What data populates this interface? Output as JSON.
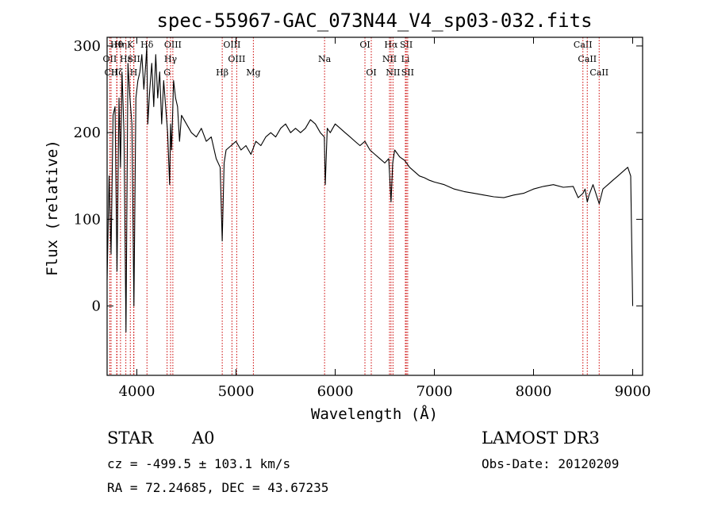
{
  "chart_data": {
    "type": "line",
    "title": "spec-55967-GAC_073N44_V4_sp03-032.fits",
    "xlabel": "Wavelength (Å)",
    "ylabel": "Flux (relative)",
    "xlim": [
      3700,
      9100
    ],
    "ylim": [
      -80,
      310
    ],
    "xticks": [
      4000,
      5000,
      6000,
      7000,
      8000,
      9000
    ],
    "yticks": [
      0,
      100,
      200,
      300
    ],
    "series": [
      {
        "name": "spectrum",
        "x": [
          3700,
          3720,
          3740,
          3760,
          3780,
          3800,
          3820,
          3835,
          3850,
          3870,
          3890,
          3910,
          3930,
          3950,
          3970,
          3990,
          4010,
          4030,
          4050,
          4070,
          4090,
          4100,
          4110,
          4130,
          4150,
          4170,
          4190,
          4210,
          4230,
          4250,
          4270,
          4290,
          4310,
          4330,
          4340,
          4350,
          4370,
          4390,
          4410,
          4430,
          4450,
          4500,
          4550,
          4600,
          4650,
          4700,
          4750,
          4800,
          4840,
          4861,
          4880,
          4900,
          4950,
          5000,
          5050,
          5100,
          5150,
          5200,
          5250,
          5300,
          5350,
          5400,
          5450,
          5500,
          5550,
          5600,
          5650,
          5700,
          5750,
          5800,
          5850,
          5890,
          5900,
          5920,
          5950,
          6000,
          6050,
          6100,
          6150,
          6200,
          6250,
          6300,
          6350,
          6400,
          6450,
          6500,
          6540,
          6563,
          6580,
          6600,
          6650,
          6700,
          6750,
          6800,
          6850,
          6900,
          6950,
          7000,
          7100,
          7200,
          7300,
          7400,
          7500,
          7600,
          7700,
          7800,
          7900,
          8000,
          8100,
          8200,
          8300,
          8400,
          8450,
          8498,
          8520,
          8542,
          8560,
          8600,
          8662,
          8700,
          8750,
          8800,
          8850,
          8900,
          8950,
          8980,
          9000
        ],
        "y": [
          30,
          150,
          60,
          220,
          230,
          40,
          240,
          160,
          270,
          200,
          -30,
          280,
          240,
          210,
          0,
          240,
          260,
          270,
          290,
          250,
          280,
          300,
          210,
          250,
          280,
          230,
          290,
          240,
          270,
          210,
          260,
          230,
          200,
          140,
          210,
          180,
          260,
          240,
          230,
          190,
          220,
          210,
          200,
          195,
          205,
          190,
          195,
          170,
          160,
          75,
          165,
          180,
          185,
          190,
          180,
          185,
          175,
          190,
          185,
          195,
          200,
          195,
          205,
          210,
          200,
          205,
          200,
          205,
          215,
          210,
          200,
          195,
          140,
          205,
          200,
          210,
          205,
          200,
          195,
          190,
          185,
          190,
          180,
          175,
          170,
          165,
          170,
          120,
          165,
          180,
          172,
          168,
          160,
          155,
          150,
          148,
          145,
          143,
          140,
          135,
          132,
          130,
          128,
          126,
          125,
          128,
          130,
          135,
          138,
          140,
          137,
          138,
          125,
          130,
          135,
          120,
          128,
          140,
          118,
          135,
          140,
          145,
          150,
          155,
          160,
          150,
          0
        ]
      }
    ],
    "line_markers": [
      {
        "label": "Hθ",
        "wl": 3797,
        "row": 1
      },
      {
        "label": "OII",
        "wl": 3727,
        "row": 2
      },
      {
        "label": "CII",
        "wl": 3740,
        "row": 3
      },
      {
        "label": "Hη",
        "wl": 3835,
        "row": 1
      },
      {
        "label": "Hε",
        "wl": 3889,
        "row": 2
      },
      {
        "label": "Hζ",
        "wl": 3800,
        "row": 3
      },
      {
        "label": "K",
        "wl": 3934,
        "row": 1
      },
      {
        "label": "SII",
        "wl": 3970,
        "row": 2
      },
      {
        "label": "H",
        "wl": 3968,
        "row": 3
      },
      {
        "label": "Hδ",
        "wl": 4102,
        "row": 1
      },
      {
        "label": "OIII",
        "wl": 4363,
        "row": 1
      },
      {
        "label": "Hγ",
        "wl": 4340,
        "row": 2
      },
      {
        "label": "G",
        "wl": 4305,
        "row": 3
      },
      {
        "label": "Hβ",
        "wl": 4861,
        "row": 3
      },
      {
        "label": "OIII",
        "wl": 4959,
        "row": 1
      },
      {
        "label": "OIII",
        "wl": 5007,
        "row": 2
      },
      {
        "label": "Mg",
        "wl": 5175,
        "row": 3
      },
      {
        "label": "Na",
        "wl": 5893,
        "row": 2
      },
      {
        "label": "OI",
        "wl": 6300,
        "row": 1
      },
      {
        "label": "OI",
        "wl": 6364,
        "row": 3
      },
      {
        "label": "Hα",
        "wl": 6563,
        "row": 1
      },
      {
        "label": "NII",
        "wl": 6548,
        "row": 2
      },
      {
        "label": "NII",
        "wl": 6583,
        "row": 3
      },
      {
        "label": "SII",
        "wl": 6717,
        "row": 1
      },
      {
        "label": "Li",
        "wl": 6708,
        "row": 2
      },
      {
        "label": "SII",
        "wl": 6731,
        "row": 3
      },
      {
        "label": "CaII",
        "wl": 8498,
        "row": 1
      },
      {
        "label": "CaII",
        "wl": 8542,
        "row": 2
      },
      {
        "label": "CaII",
        "wl": 8662,
        "row": 3
      }
    ]
  },
  "info": {
    "class": "STAR",
    "subclass": "A0",
    "survey": "LAMOST DR3",
    "cz": "cz = -499.5 ± 103.1 km/s",
    "obs_date": "Obs-Date: 20120209",
    "coords": "RA =  72.24685, DEC =  43.67235"
  },
  "colors": {
    "spectrum": "#000000",
    "marker": "#cc0000",
    "frame": "#000000"
  }
}
